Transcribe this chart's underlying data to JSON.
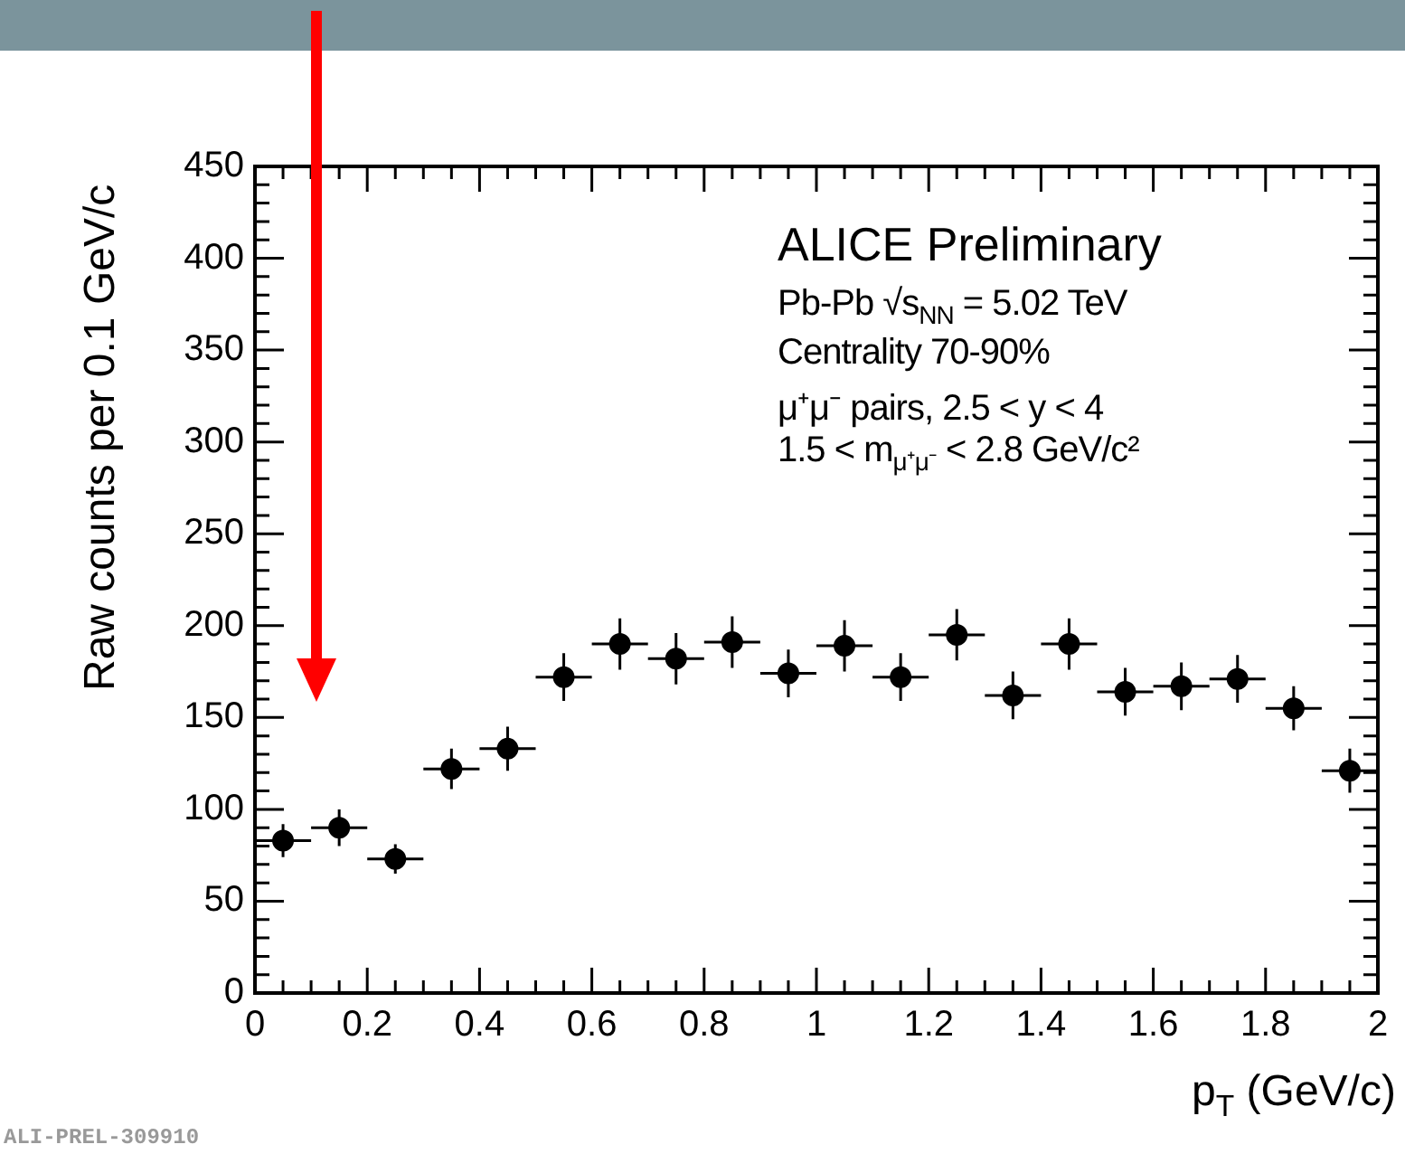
{
  "chart_data": {
    "type": "scatter",
    "title": "ALICE Preliminary",
    "xlabel": "p$_{T}$ (GeV/c)",
    "ylabel": "Raw counts per 0.1 GeV/c",
    "annotations": [
      "Pb-Pb √s$_{NN}$ = 5.02 TeV",
      "Centrality 70-90%",
      "μ⁺μ⁻ pairs, 2.5 < y < 4",
      "1.5 < m$_{μ⁺μ⁻}$ < 2.8 GeV/c²",
      "ALI-PREL-309910"
    ],
    "x": [
      0.05,
      0.15,
      0.25,
      0.35,
      0.45,
      0.55,
      0.65,
      0.75,
      0.85,
      0.95,
      1.05,
      1.15,
      1.25,
      1.35,
      1.45,
      1.55,
      1.65,
      1.75,
      1.85,
      1.95
    ],
    "series": [
      {
        "color": "#000000",
        "values": [
          83,
          90,
          73,
          122,
          133,
          172,
          190,
          182,
          191,
          174,
          189,
          172,
          195,
          162,
          190,
          164,
          167,
          171,
          155,
          121
        ],
        "errors": [
          9,
          10,
          8,
          11,
          12,
          13,
          14,
          14,
          14,
          13,
          14,
          13,
          14,
          13,
          14,
          13,
          13,
          13,
          12,
          12
        ],
        "xerrors": [
          0.05,
          0.05,
          0.05,
          0.05,
          0.05,
          0.05,
          0.05,
          0.05,
          0.05,
          0.05,
          0.05,
          0.05,
          0.05,
          0.05,
          0.05,
          0.05,
          0.05,
          0.05,
          0.05,
          0.05
        ]
      }
    ],
    "xlim": [
      0,
      2
    ],
    "xticks": [
      0,
      0.2,
      0.4,
      0.6,
      0.8,
      1,
      1.2,
      1.4,
      1.6,
      1.8,
      2
    ],
    "ylim": [
      0,
      450
    ],
    "yticks": [
      0,
      50,
      100,
      150,
      200,
      250,
      300,
      350,
      400,
      450
    ],
    "grid": false,
    "legend": false,
    "marker": "circle"
  }
}
